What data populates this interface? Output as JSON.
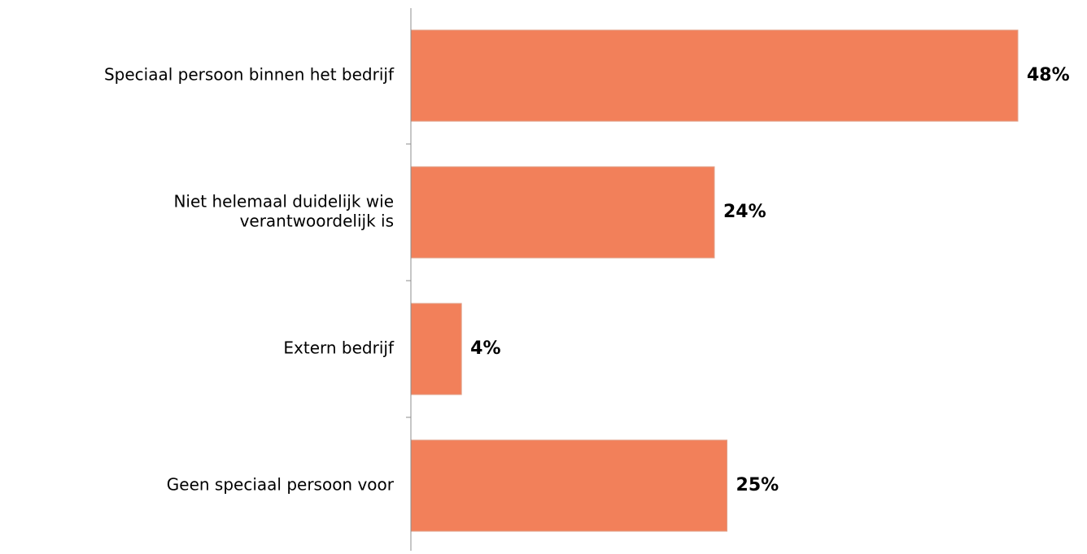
{
  "chart_data": {
    "type": "bar",
    "orientation": "horizontal",
    "categories": [
      "Speciaal persoon binnen het bedrijf",
      "Niet helemaal duidelijk wie verantwoordelijk is",
      "Extern bedrijf",
      "Geen speciaal persoon voor"
    ],
    "category_lines": [
      [
        "Speciaal persoon binnen het bedrijf"
      ],
      [
        "Niet helemaal duidelijk wie",
        "verantwoordelijk is"
      ],
      [
        "Extern bedrijf"
      ],
      [
        "Geen speciaal persoon voor"
      ]
    ],
    "values": [
      48,
      24,
      4,
      25
    ],
    "data_labels": [
      "48%",
      "24%",
      "4%",
      "25%"
    ],
    "xlim": [
      0,
      50
    ],
    "grid": false,
    "legend": "none",
    "title": "",
    "xlabel": "",
    "ylabel": "",
    "colors": {
      "bar": "#F2805A",
      "bar_edge": "#E0A088",
      "axis": "#8C8C8C",
      "label_text": "#000000"
    }
  }
}
